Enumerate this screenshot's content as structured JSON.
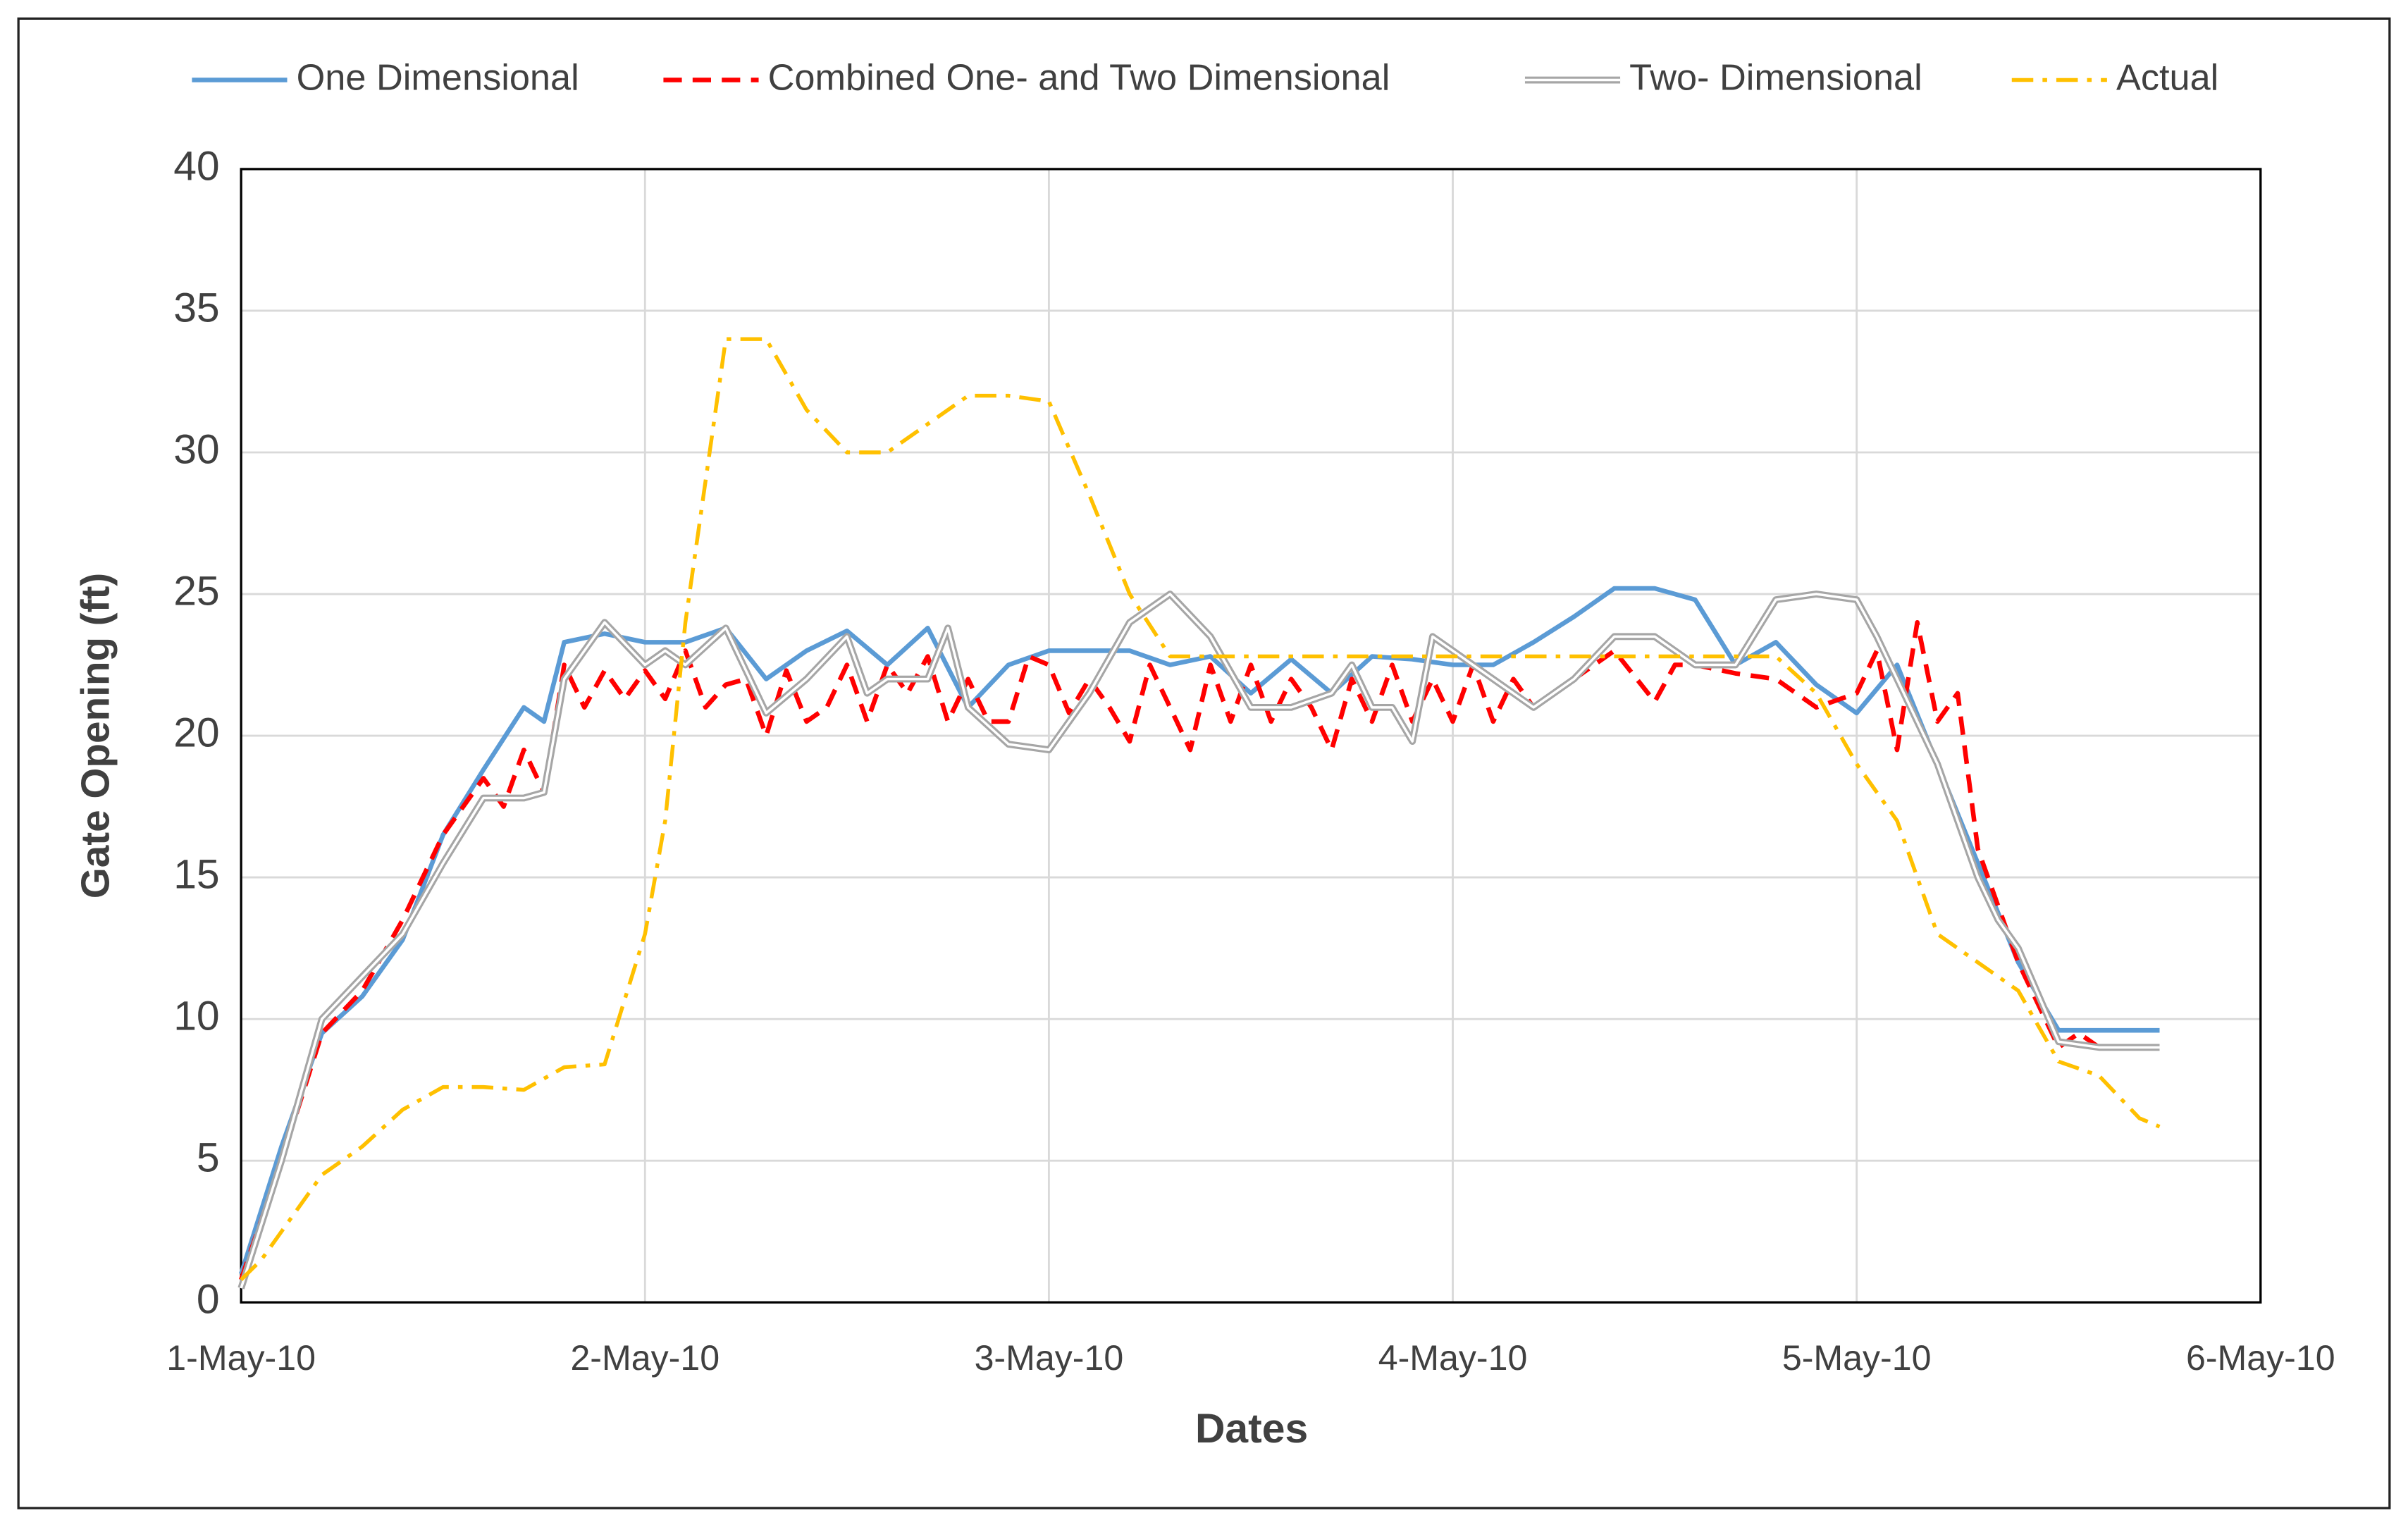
{
  "chart_data": {
    "type": "line",
    "x_label": "Dates",
    "y_label": "Gate Opening (ft)",
    "xlim": [
      40299,
      40304
    ],
    "xticks": [
      {
        "value": 40299,
        "label": "1-May-10"
      },
      {
        "value": 40300,
        "label": "2-May-10"
      },
      {
        "value": 40301,
        "label": "3-May-10"
      },
      {
        "value": 40302,
        "label": "4-May-10"
      },
      {
        "value": 40303,
        "label": "5-May-10"
      },
      {
        "value": 40304,
        "label": "6-May-10"
      }
    ],
    "ylim": [
      0,
      40
    ],
    "yticks": [
      0,
      5,
      10,
      15,
      20,
      25,
      30,
      35,
      40
    ],
    "grid": true,
    "legend": "top",
    "series": [
      {
        "name": "One Dimensional",
        "color": "#5b9bd5",
        "style": "solid",
        "x": [
          40299,
          40299.1,
          40299.2,
          40299.3,
          40299.4,
          40299.5,
          40299.6,
          40299.7,
          40299.75,
          40299.8,
          40299.9,
          40300,
          40300.1,
          40300.2,
          40300.3,
          40300.4,
          40300.5,
          40300.6,
          40300.7,
          40300.8,
          40300.9,
          40301,
          40301.1,
          40301.2,
          40301.3,
          40301.4,
          40301.5,
          40301.6,
          40301.7,
          40301.8,
          40301.9,
          40302,
          40302.1,
          40302.2,
          40302.3,
          40302.4,
          40302.5,
          40302.6,
          40302.7,
          40302.8,
          40302.9,
          40303,
          40303.1,
          40303.2,
          40303.3,
          40303.4,
          40303.5,
          40303.6,
          40303.7,
          40303.75
        ],
        "values": [
          1,
          5.5,
          9.5,
          10.8,
          12.8,
          16.5,
          18.8,
          21,
          20.5,
          23.3,
          23.6,
          23.3,
          23.3,
          23.8,
          22,
          23,
          23.7,
          22.5,
          23.8,
          21,
          22.5,
          23,
          23,
          23,
          22.5,
          22.8,
          21.5,
          22.7,
          21.5,
          22.8,
          22.7,
          22.5,
          22.5,
          23.3,
          24.2,
          25.2,
          25.2,
          24.8,
          22.5,
          23.3,
          21.8,
          20.8,
          22.5,
          19,
          15.5,
          12,
          9.6,
          9.6,
          9.6,
          9.6
        ]
      },
      {
        "name": "Combined One- and Two Dimensional",
        "color": "#ff0000",
        "style": "dashed",
        "x": [
          40299,
          40299.1,
          40299.2,
          40299.3,
          40299.4,
          40299.5,
          40299.6,
          40299.65,
          40299.7,
          40299.75,
          40299.8,
          40299.85,
          40299.9,
          40299.95,
          40300,
          40300.05,
          40300.1,
          40300.15,
          40300.2,
          40300.25,
          40300.3,
          40300.35,
          40300.4,
          40300.45,
          40300.5,
          40300.55,
          40300.6,
          40300.65,
          40300.7,
          40300.75,
          40300.8,
          40300.85,
          40300.9,
          40300.95,
          40301,
          40301.05,
          40301.1,
          40301.15,
          40301.2,
          40301.25,
          40301.3,
          40301.35,
          40301.4,
          40301.45,
          40301.5,
          40301.55,
          40301.6,
          40301.65,
          40301.7,
          40301.75,
          40301.8,
          40301.85,
          40301.9,
          40301.95,
          40302,
          40302.05,
          40302.1,
          40302.15,
          40302.2,
          40302.3,
          40302.4,
          40302.5,
          40302.55,
          40302.6,
          40302.7,
          40302.8,
          40302.9,
          40303,
          40303.05,
          40303.1,
          40303.15,
          40303.2,
          40303.25,
          40303.3,
          40303.4,
          40303.5,
          40303.55,
          40303.6,
          40303.7,
          40303.75
        ],
        "values": [
          0.8,
          5,
          9.5,
          11,
          13.5,
          16.5,
          18.5,
          17.5,
          19.5,
          18,
          22.5,
          21,
          22.3,
          21.3,
          22.3,
          21.3,
          23,
          21,
          21.8,
          22,
          20,
          22.3,
          20.5,
          21,
          22.5,
          20.5,
          22.5,
          21.5,
          22.8,
          20.5,
          22,
          20.5,
          20.5,
          22.8,
          22.5,
          20.8,
          22,
          21,
          19.8,
          22.5,
          21,
          19.5,
          22.5,
          20.5,
          22.5,
          20.5,
          22,
          21,
          19.5,
          22,
          20.5,
          22.5,
          20.5,
          22,
          20.5,
          22.5,
          20.5,
          22,
          21,
          22,
          23,
          21.2,
          22.5,
          22.5,
          22.2,
          22,
          21,
          21.5,
          23,
          19.5,
          24,
          20.5,
          21.5,
          16,
          12,
          9,
          9.5,
          9,
          9,
          9
        ]
      },
      {
        "name": "Two- Dimensional",
        "color": "#a6a6a6",
        "style": "double",
        "x": [
          40299,
          40299.1,
          40299.2,
          40299.3,
          40299.4,
          40299.5,
          40299.6,
          40299.7,
          40299.75,
          40299.8,
          40299.9,
          40300,
          40300.05,
          40300.1,
          40300.2,
          40300.3,
          40300.4,
          40300.5,
          40300.55,
          40300.6,
          40300.7,
          40300.75,
          40300.8,
          40300.9,
          40301,
          40301.1,
          40301.2,
          40301.3,
          40301.4,
          40301.5,
          40301.6,
          40301.7,
          40301.75,
          40301.8,
          40301.85,
          40301.9,
          40301.95,
          40302,
          40302.1,
          40302.2,
          40302.3,
          40302.4,
          40302.5,
          40302.6,
          40302.7,
          40302.8,
          40302.9,
          40303,
          40303.05,
          40303.1,
          40303.2,
          40303.3,
          40303.35,
          40303.4,
          40303.5,
          40303.6,
          40303.7,
          40303.75
        ],
        "values": [
          0.5,
          5,
          10,
          11.5,
          13,
          15.5,
          17.8,
          17.8,
          18,
          22,
          24,
          22.5,
          23,
          22.5,
          23.8,
          20.8,
          22,
          23.5,
          21.5,
          22,
          22,
          23.8,
          21,
          19.7,
          19.5,
          21.5,
          24,
          25,
          23.5,
          21,
          21,
          21.5,
          22.5,
          21,
          21,
          19.8,
          23.5,
          23,
          22,
          21,
          22,
          23.5,
          23.5,
          22.5,
          22.5,
          24.8,
          25,
          24.8,
          23.5,
          22,
          19,
          15,
          13.5,
          12.5,
          9.2,
          9,
          9,
          9
        ]
      },
      {
        "name": "Actual",
        "color": "#ffc000",
        "style": "dashdot",
        "x": [
          40299,
          40299.05,
          40299.1,
          40299.2,
          40299.3,
          40299.4,
          40299.5,
          40299.6,
          40299.7,
          40299.8,
          40299.9,
          40300,
          40300.05,
          40300.1,
          40300.2,
          40300.3,
          40300.4,
          40300.5,
          40300.6,
          40300.7,
          40300.8,
          40300.9,
          40301,
          40301.1,
          40301.2,
          40301.3,
          40302.8,
          40302.9,
          40303,
          40303.1,
          40303.2,
          40303.3,
          40303.4,
          40303.5,
          40303.6,
          40303.7,
          40303.75
        ],
        "values": [
          0.8,
          1.5,
          2.5,
          4.5,
          5.5,
          6.8,
          7.6,
          7.6,
          7.5,
          8.3,
          8.4,
          13,
          17,
          24,
          34,
          34,
          31.5,
          30,
          30,
          31,
          32,
          32,
          31.8,
          28.5,
          25,
          22.8,
          22.8,
          21.5,
          19,
          17,
          13,
          12,
          11,
          8.5,
          8,
          6.5,
          6.2
        ]
      }
    ]
  }
}
